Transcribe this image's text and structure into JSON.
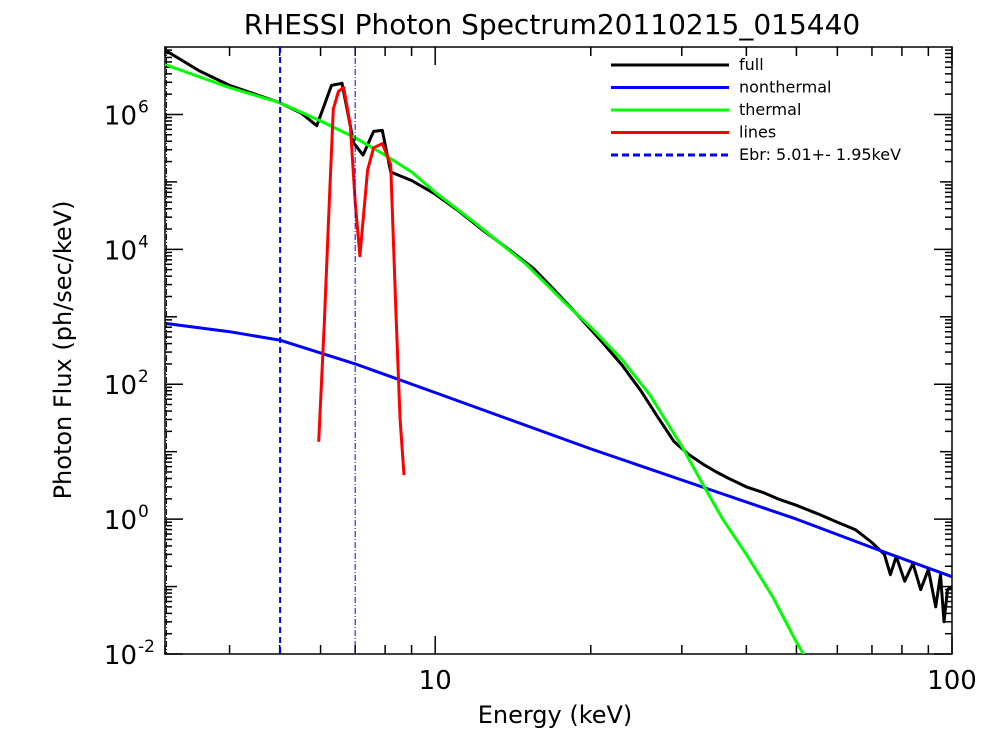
{
  "chart_data": {
    "type": "line",
    "title": "RHESSI Photon Spectrum20110215_015440",
    "xlabel": "Energy (keV)",
    "ylabel": "Photon Flux (ph/sec/keV)",
    "xscale": "log",
    "yscale": "log",
    "xlim": [
      3.0,
      100.0
    ],
    "ylim": [
      0.01,
      10000000.0
    ],
    "grid": false,
    "legend_position": "top-right",
    "x_ticks": [
      {
        "value": 10,
        "label": "10"
      },
      {
        "value": 100,
        "label": "100"
      }
    ],
    "y_ticks": [
      {
        "value": 0.01,
        "base": "10",
        "exp": "-2"
      },
      {
        "value": 1,
        "base": "10",
        "exp": "0"
      },
      {
        "value": 100,
        "base": "10",
        "exp": "2"
      },
      {
        "value": 10000,
        "base": "10",
        "exp": "4"
      },
      {
        "value": 1000000,
        "base": "10",
        "exp": "6"
      }
    ],
    "series": [
      {
        "name": "full",
        "color": "#000000",
        "dash": "",
        "points": [
          [
            3.0,
            9000000
          ],
          [
            3.5,
            4400000
          ],
          [
            4.0,
            2700000
          ],
          [
            5.0,
            1500000
          ],
          [
            5.5,
            1050000
          ],
          [
            5.9,
            680000
          ],
          [
            6.3,
            2700000
          ],
          [
            6.6,
            2900000
          ],
          [
            6.95,
            380000
          ],
          [
            7.25,
            250000
          ],
          [
            7.6,
            560000
          ],
          [
            7.9,
            580000
          ],
          [
            8.2,
            140000
          ],
          [
            9.0,
            105000
          ],
          [
            10.0,
            66000
          ],
          [
            11.0,
            39000
          ],
          [
            12.5,
            18000
          ],
          [
            14.0,
            9500
          ],
          [
            15.5,
            5200
          ],
          [
            17.0,
            2500
          ],
          [
            19.0,
            1000
          ],
          [
            21.0,
            430
          ],
          [
            23.0,
            190
          ],
          [
            25.0,
            80
          ],
          [
            27.0,
            32
          ],
          [
            29.0,
            14
          ],
          [
            31.0,
            9
          ],
          [
            33.0,
            6.5
          ],
          [
            35.0,
            5
          ],
          [
            37.0,
            4
          ],
          [
            40.0,
            3
          ],
          [
            43.0,
            2.5
          ],
          [
            46.0,
            2
          ],
          [
            50.0,
            1.6
          ],
          [
            55.0,
            1.2
          ],
          [
            60.0,
            0.9
          ],
          [
            65.0,
            0.7
          ],
          [
            70.0,
            0.45
          ],
          [
            74.0,
            0.3
          ],
          [
            76.0,
            0.15
          ],
          [
            78.0,
            0.28
          ],
          [
            81.0,
            0.12
          ],
          [
            84.0,
            0.22
          ],
          [
            87.0,
            0.09
          ],
          [
            90.0,
            0.18
          ],
          [
            93.0,
            0.05
          ],
          [
            95.0,
            0.15
          ],
          [
            96.5,
            0.03
          ],
          [
            98.0,
            0.09
          ],
          [
            100.0,
            0.1
          ]
        ]
      },
      {
        "name": "nonthermal",
        "color": "#0000ff",
        "dash": "",
        "points": [
          [
            3.0,
            800
          ],
          [
            4.0,
            600
          ],
          [
            5.01,
            450
          ],
          [
            7.0,
            200
          ],
          [
            10.0,
            75
          ],
          [
            20.0,
            11
          ],
          [
            30.0,
            3.8
          ],
          [
            50.0,
            1.0
          ],
          [
            70.0,
            0.38
          ],
          [
            100.0,
            0.14
          ]
        ]
      },
      {
        "name": "thermal",
        "color": "#00ff00",
        "dash": "",
        "points": [
          [
            3.0,
            5500000
          ],
          [
            4.0,
            2500000
          ],
          [
            5.0,
            1500000
          ],
          [
            6.0,
            800000
          ],
          [
            7.0,
            450000
          ],
          [
            8.0,
            250000
          ],
          [
            9.0,
            140000
          ],
          [
            10.0,
            70000
          ],
          [
            12.0,
            24000
          ],
          [
            15.0,
            6000
          ],
          [
            18.0,
            1500
          ],
          [
            20.0,
            700
          ],
          [
            23.0,
            230
          ],
          [
            26.0,
            70
          ],
          [
            30.0,
            12
          ],
          [
            33.0,
            3.2
          ],
          [
            36.0,
            1.0
          ],
          [
            40.0,
            0.3
          ],
          [
            45.0,
            0.07
          ],
          [
            50.0,
            0.015
          ],
          [
            52.0,
            0.009
          ]
        ]
      },
      {
        "name": "lines",
        "color": "#ff0000",
        "dash": "",
        "points": [
          [
            5.95,
            14
          ],
          [
            6.1,
            800
          ],
          [
            6.25,
            70000
          ],
          [
            6.35,
            1200000
          ],
          [
            6.5,
            2200000
          ],
          [
            6.65,
            2500000
          ],
          [
            6.85,
            700000
          ],
          [
            7.0,
            50000
          ],
          [
            7.15,
            8000
          ],
          [
            7.4,
            150000
          ],
          [
            7.6,
            320000
          ],
          [
            7.9,
            370000
          ],
          [
            8.2,
            180000
          ],
          [
            8.4,
            1000
          ],
          [
            8.55,
            30
          ],
          [
            8.7,
            4.5
          ]
        ]
      }
    ],
    "vlines": [
      {
        "name": "Ebr:   5.01+-  1.95keV",
        "x": 5.01,
        "color": "#0000ff",
        "dash": "6,4",
        "in_legend": true
      },
      {
        "x": 7.0,
        "color": "#0000ff",
        "dash": "6,2,1,2",
        "in_legend": false
      },
      {
        "x": 3.0,
        "color": "#000000",
        "dash": "6,2,1,2",
        "in_legend": false
      }
    ]
  }
}
